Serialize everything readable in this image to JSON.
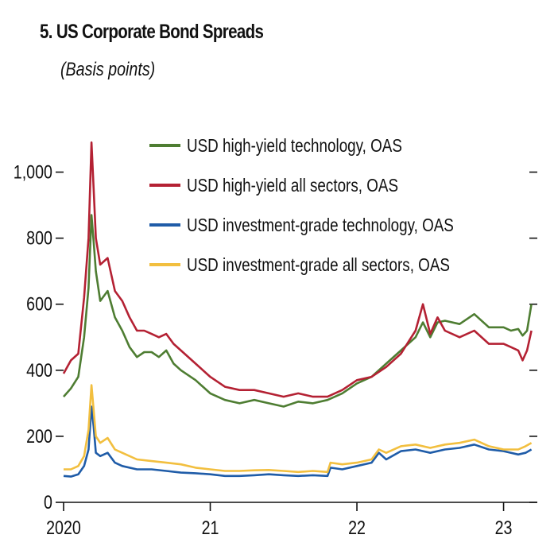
{
  "title": "5. US Corporate Bond Spreads",
  "subtitle": "(Basis points)",
  "chart_data": {
    "type": "line",
    "title": "5. US Corporate Bond Spreads",
    "subtitle": "(Basis points)",
    "xlabel": "",
    "ylabel": "Basis points",
    "ylim": [
      0,
      1100
    ],
    "xlim": [
      2020.0,
      2023.23
    ],
    "yticks": [
      0,
      200,
      400,
      600,
      800,
      1000
    ],
    "ytick_labels": [
      "0",
      "200",
      "400",
      "600",
      "800",
      "1,000"
    ],
    "xticks": [
      2020,
      2021,
      2022,
      2023
    ],
    "xtick_labels": [
      "2020",
      "21",
      "22",
      "23"
    ],
    "legend_position": "top-center",
    "series": [
      {
        "name": "USD high-yield technology, OAS",
        "color": "#4e7d32",
        "x": [
          2020.0,
          2020.05,
          2020.1,
          2020.14,
          2020.17,
          2020.19,
          2020.205,
          2020.22,
          2020.25,
          2020.3,
          2020.35,
          2020.4,
          2020.45,
          2020.5,
          2020.55,
          2020.6,
          2020.65,
          2020.7,
          2020.75,
          2020.8,
          2020.9,
          2021.0,
          2021.1,
          2021.2,
          2021.3,
          2021.4,
          2021.5,
          2021.6,
          2021.7,
          2021.8,
          2021.9,
          2022.0,
          2022.1,
          2022.2,
          2022.3,
          2022.4,
          2022.45,
          2022.5,
          2022.55,
          2022.6,
          2022.7,
          2022.8,
          2022.9,
          2023.0,
          2023.05,
          2023.1,
          2023.13,
          2023.16,
          2023.19
        ],
        "values": [
          320,
          345,
          380,
          500,
          650,
          870,
          790,
          700,
          610,
          640,
          560,
          520,
          470,
          440,
          455,
          455,
          440,
          460,
          420,
          400,
          370,
          330,
          310,
          300,
          310,
          300,
          290,
          305,
          300,
          310,
          330,
          360,
          380,
          420,
          460,
          500,
          545,
          500,
          545,
          550,
          540,
          570,
          530,
          530,
          520,
          525,
          505,
          520,
          600
        ]
      },
      {
        "name": "USD high-yield all sectors, OAS",
        "color": "#b42133",
        "x": [
          2020.0,
          2020.05,
          2020.1,
          2020.14,
          2020.17,
          2020.19,
          2020.205,
          2020.22,
          2020.25,
          2020.3,
          2020.35,
          2020.4,
          2020.45,
          2020.5,
          2020.55,
          2020.6,
          2020.65,
          2020.7,
          2020.75,
          2020.8,
          2020.9,
          2021.0,
          2021.1,
          2021.2,
          2021.3,
          2021.4,
          2021.5,
          2021.6,
          2021.7,
          2021.8,
          2021.9,
          2022.0,
          2022.1,
          2022.2,
          2022.3,
          2022.4,
          2022.45,
          2022.5,
          2022.55,
          2022.6,
          2022.7,
          2022.8,
          2022.9,
          2023.0,
          2023.05,
          2023.1,
          2023.13,
          2023.16,
          2023.19
        ],
        "values": [
          390,
          430,
          450,
          620,
          800,
          1090,
          950,
          800,
          720,
          740,
          640,
          610,
          560,
          520,
          520,
          510,
          500,
          510,
          480,
          460,
          420,
          380,
          350,
          340,
          340,
          330,
          320,
          330,
          320,
          320,
          340,
          370,
          380,
          410,
          450,
          520,
          600,
          510,
          560,
          520,
          500,
          520,
          480,
          480,
          470,
          460,
          430,
          460,
          520
        ]
      },
      {
        "name": "USD investment-grade technology, OAS",
        "color": "#1f5ca8",
        "x": [
          2020.0,
          2020.05,
          2020.1,
          2020.14,
          2020.17,
          2020.19,
          2020.205,
          2020.22,
          2020.25,
          2020.3,
          2020.35,
          2020.4,
          2020.5,
          2020.6,
          2020.7,
          2020.8,
          2020.9,
          2021.0,
          2021.1,
          2021.2,
          2021.3,
          2021.4,
          2021.5,
          2021.6,
          2021.7,
          2021.8,
          2021.82,
          2021.9,
          2022.0,
          2022.1,
          2022.15,
          2022.2,
          2022.3,
          2022.4,
          2022.5,
          2022.6,
          2022.7,
          2022.8,
          2022.9,
          2023.0,
          2023.1,
          2023.15,
          2023.19
        ],
        "values": [
          80,
          78,
          85,
          110,
          160,
          290,
          230,
          150,
          140,
          150,
          120,
          110,
          100,
          100,
          95,
          90,
          88,
          85,
          80,
          80,
          82,
          85,
          82,
          80,
          82,
          80,
          105,
          100,
          110,
          120,
          150,
          130,
          155,
          160,
          150,
          160,
          165,
          175,
          160,
          155,
          145,
          150,
          160
        ]
      },
      {
        "name": "USD investment-grade all sectors, OAS",
        "color": "#f2bf3f",
        "x": [
          2020.0,
          2020.05,
          2020.1,
          2020.14,
          2020.17,
          2020.19,
          2020.205,
          2020.22,
          2020.25,
          2020.3,
          2020.35,
          2020.4,
          2020.5,
          2020.6,
          2020.7,
          2020.8,
          2020.9,
          2021.0,
          2021.1,
          2021.2,
          2021.3,
          2021.4,
          2021.5,
          2021.6,
          2021.7,
          2021.8,
          2021.82,
          2021.9,
          2022.0,
          2022.1,
          2022.15,
          2022.2,
          2022.3,
          2022.4,
          2022.5,
          2022.6,
          2022.7,
          2022.8,
          2022.9,
          2023.0,
          2023.1,
          2023.15,
          2023.19
        ],
        "values": [
          100,
          100,
          110,
          140,
          220,
          355,
          280,
          200,
          180,
          195,
          160,
          150,
          130,
          125,
          120,
          115,
          105,
          100,
          95,
          95,
          97,
          98,
          95,
          92,
          95,
          92,
          120,
          115,
          120,
          130,
          160,
          150,
          170,
          175,
          165,
          175,
          180,
          190,
          170,
          160,
          160,
          170,
          180
        ]
      }
    ]
  }
}
